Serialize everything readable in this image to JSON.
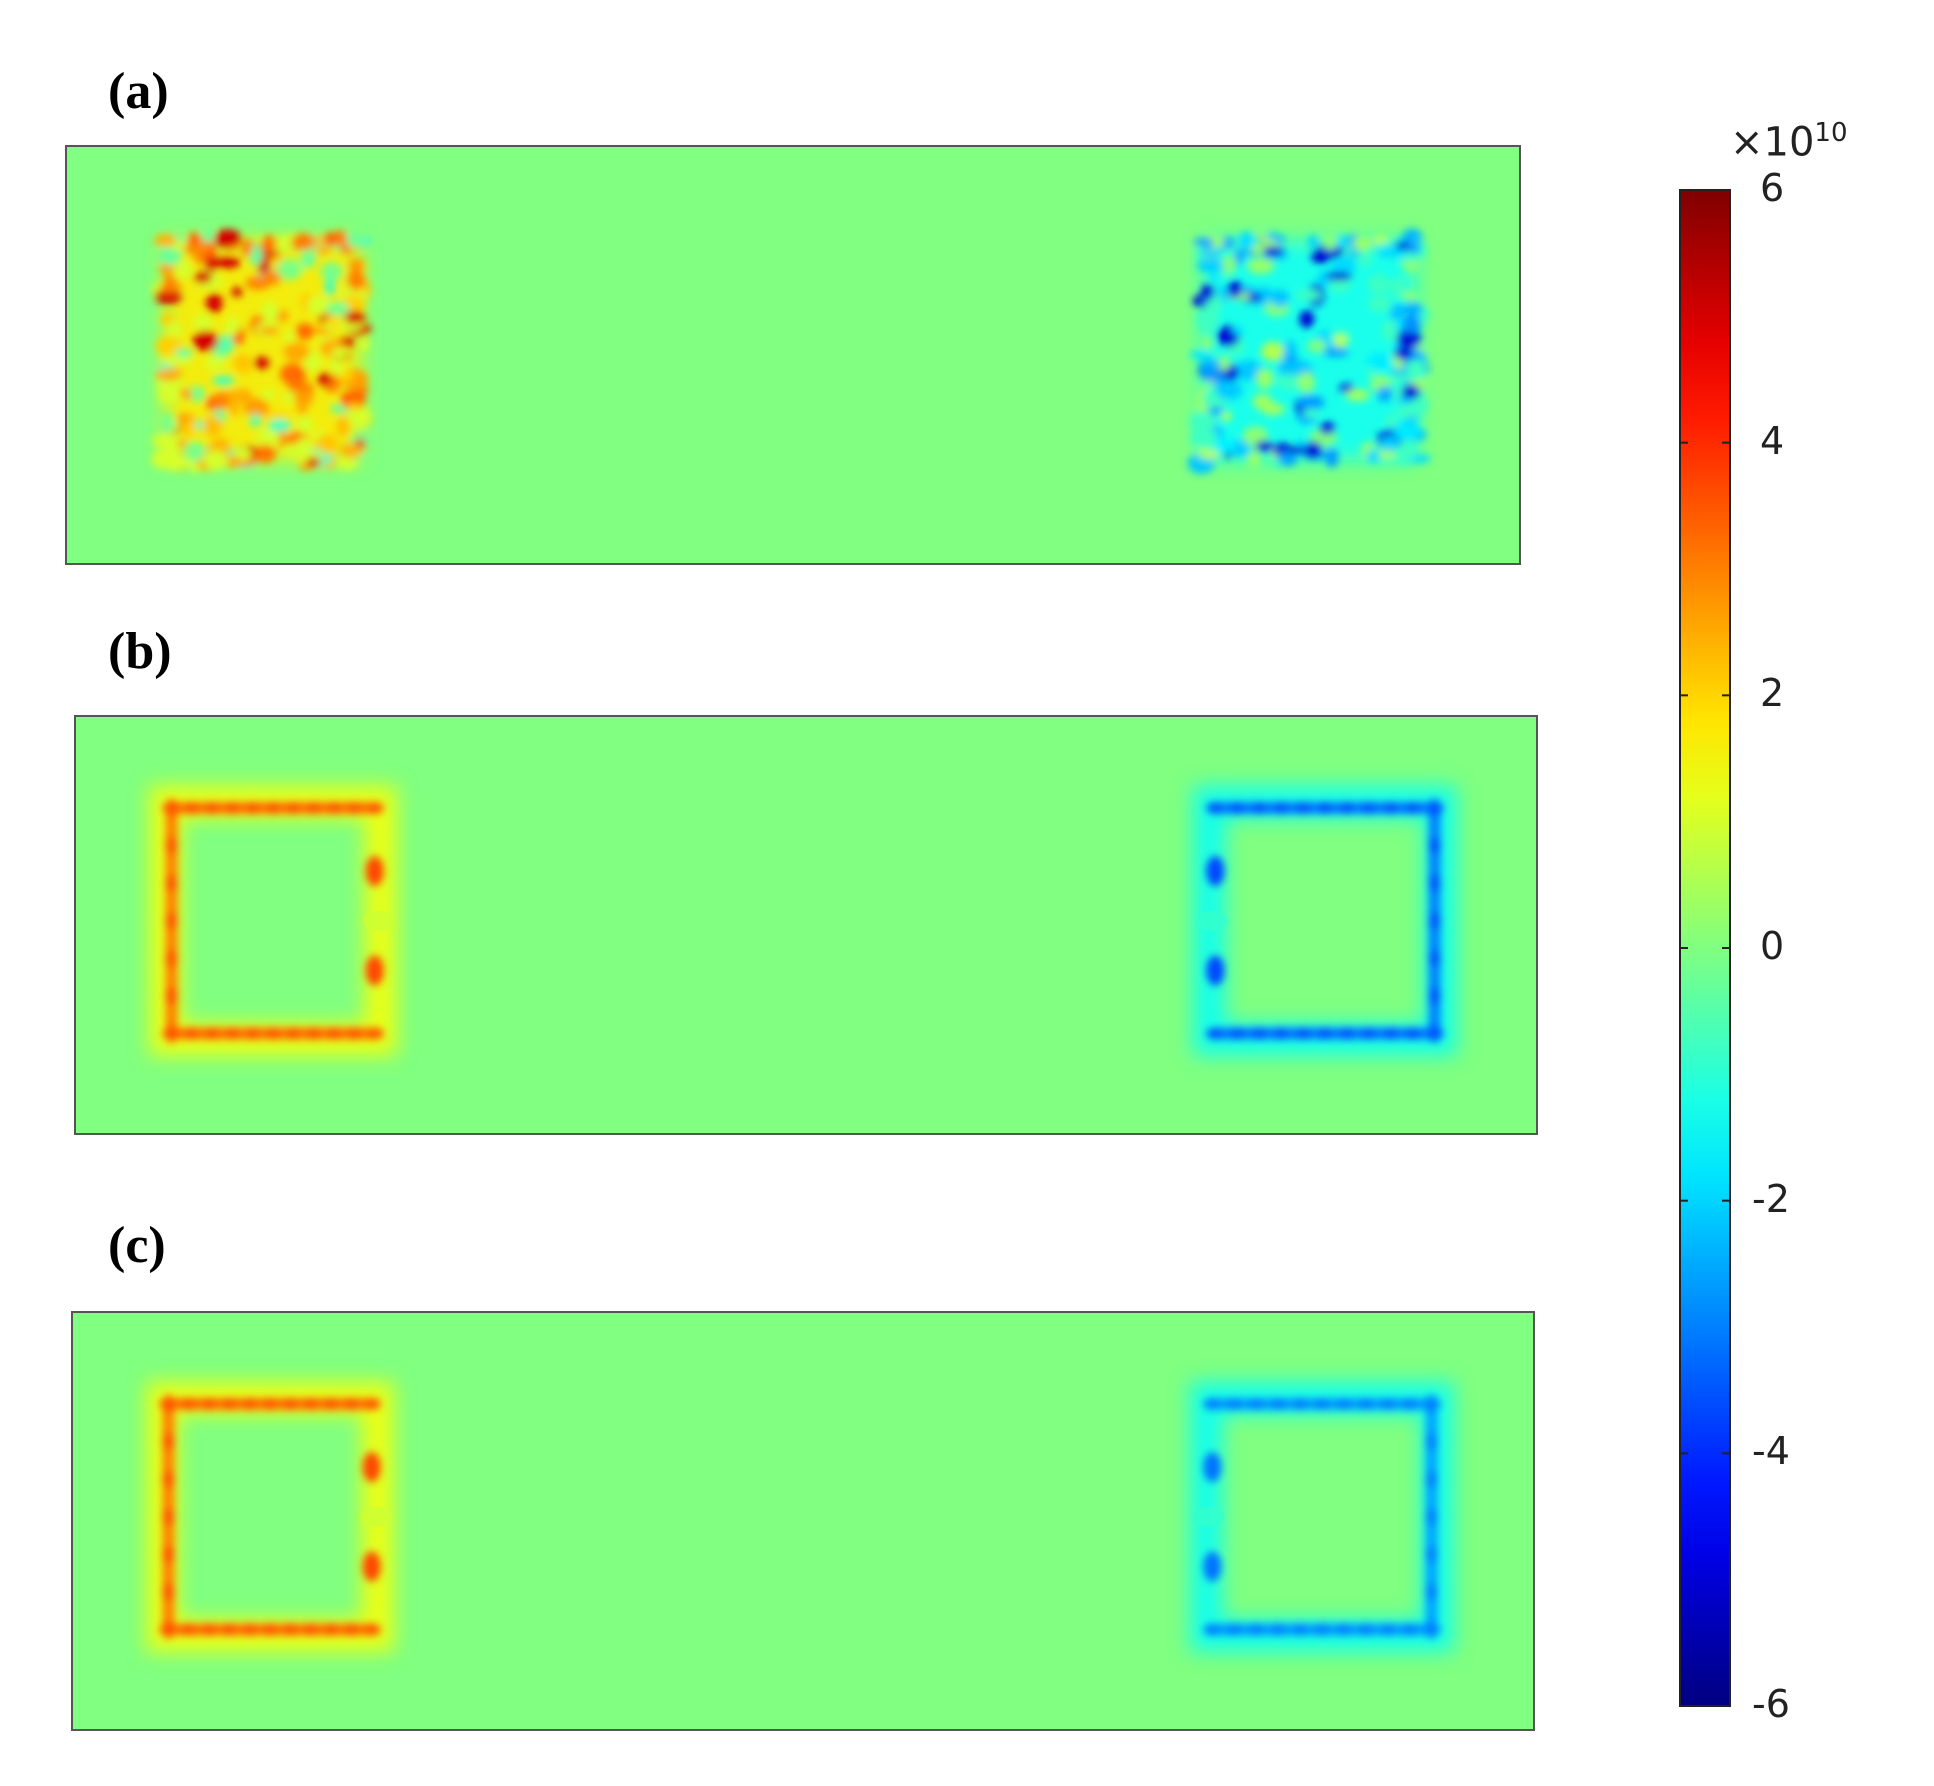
{
  "chart_data": {
    "type": "heatmap",
    "colormap": "jet",
    "panels": [
      {
        "label": "(a)",
        "background_value": 0,
        "regions": [
          {
            "side": "left",
            "pattern": "noisy",
            "sign": "positive",
            "peak_value": 5,
            "typical_value": 2.5
          },
          {
            "side": "right",
            "pattern": "noisy",
            "sign": "negative",
            "peak_value": -5,
            "typical_value": -2
          }
        ]
      },
      {
        "label": "(b)",
        "background_value": 0,
        "regions": [
          {
            "side": "left",
            "pattern": "square-frame",
            "sign": "positive",
            "edge_value": 3.5,
            "halo_value": 1.5
          },
          {
            "side": "right",
            "pattern": "square-frame",
            "sign": "negative",
            "edge_value": -3.5,
            "halo_value": -1.5
          }
        ]
      },
      {
        "label": "(c)",
        "background_value": 0,
        "regions": [
          {
            "side": "left",
            "pattern": "square-frame",
            "sign": "positive",
            "edge_value": 3.5,
            "halo_value": 1.5
          },
          {
            "side": "right",
            "pattern": "square-frame",
            "sign": "negative",
            "edge_value": -3,
            "halo_value": -1.5
          }
        ]
      }
    ],
    "colorbar": {
      "multiplier_base": "×10",
      "multiplier_exponent": "10",
      "min": -6,
      "max": 6,
      "ticks": [
        "6",
        "4",
        "2",
        "0",
        "-2",
        "-4",
        "-6"
      ],
      "tick_values": [
        6,
        4,
        2,
        0,
        -2,
        -4,
        -6
      ]
    }
  }
}
